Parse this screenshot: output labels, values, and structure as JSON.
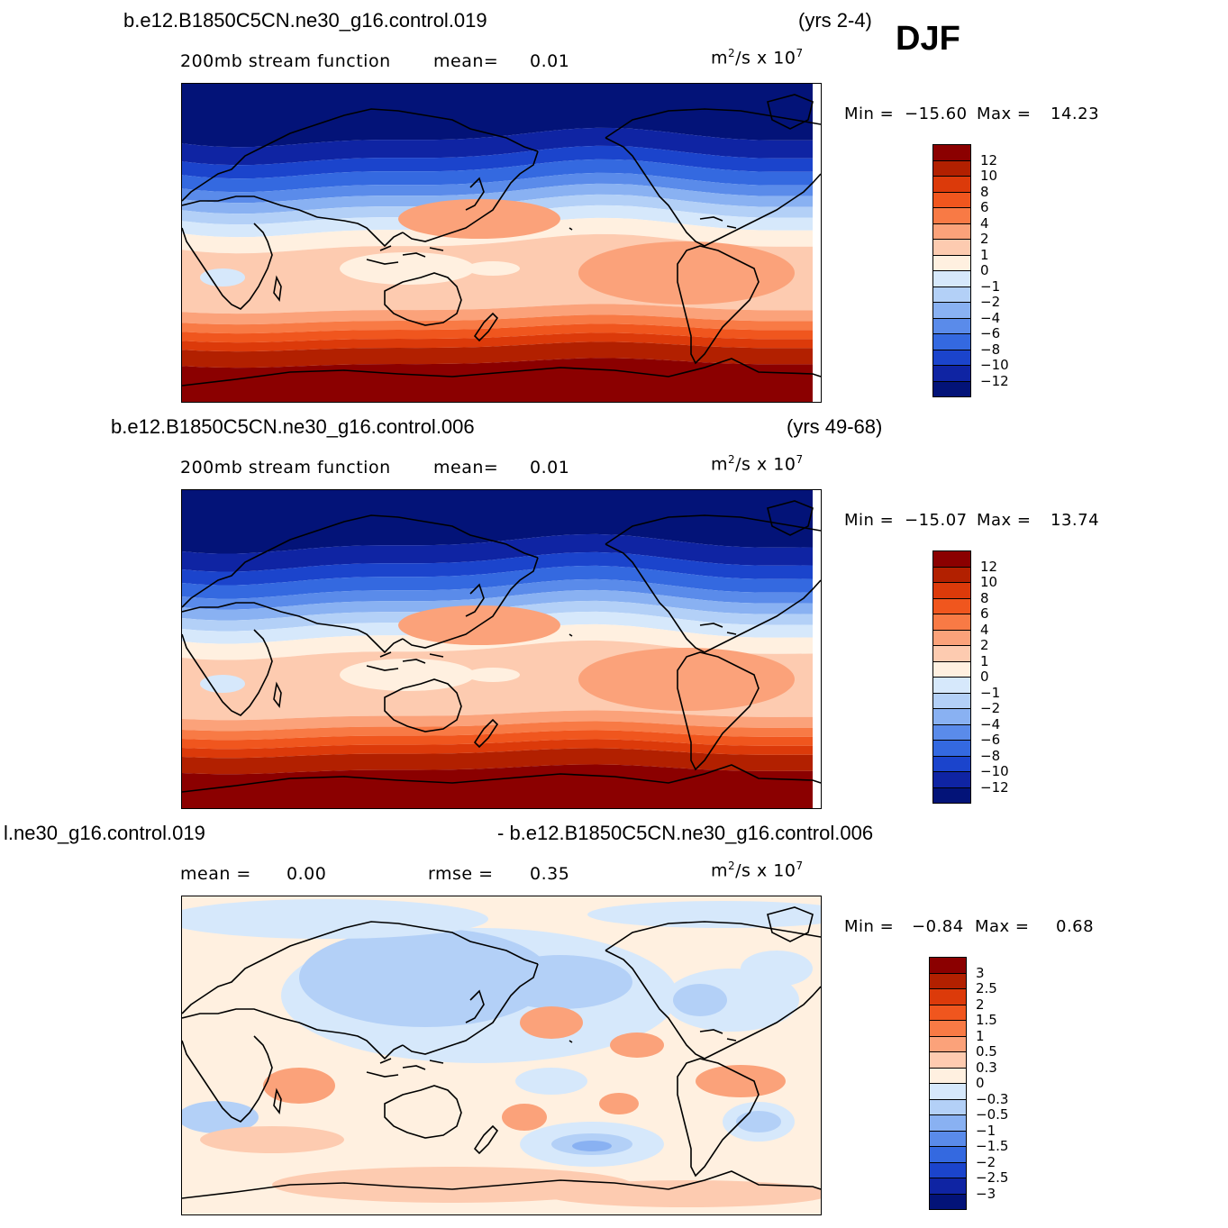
{
  "season": "DJF",
  "panels": [
    {
      "case_title": "b.e12.B1850C5CN.ne30_g16.control.019",
      "years": "(yrs 2-4)",
      "variable_label": "200mb stream function",
      "mean_label": "mean=",
      "mean_value": "0.01",
      "units_base": "m",
      "units_exp1": "2",
      "units_mid": "/s x 10",
      "units_exp2": "7",
      "min_label": "Min =",
      "min_value": "−15.60",
      "max_label": "Max =",
      "max_value": "14.23",
      "colorbar_labels": [
        "12",
        "10",
        "8",
        "6",
        "4",
        "2",
        "1",
        "0",
        "−1",
        "−2",
        "−4",
        "−6",
        "−8",
        "−10",
        "−12"
      ],
      "colorbar_colors": [
        "#8b0000",
        "#b22000",
        "#dc3a0a",
        "#f0561e",
        "#f87a45",
        "#fba27a",
        "#fdcbb0",
        "#fff0e0",
        "#d6e8fb",
        "#b3d0f7",
        "#89b1f2",
        "#5a8bea",
        "#3469e0",
        "#1b44cc",
        "#0f24a3",
        "#031378"
      ]
    },
    {
      "case_title": "b.e12.B1850C5CN.ne30_g16.control.006",
      "years": "(yrs 49-68)",
      "variable_label": "200mb stream function",
      "mean_label": "mean=",
      "mean_value": "0.01",
      "units_base": "m",
      "units_exp1": "2",
      "units_mid": "/s x 10",
      "units_exp2": "7",
      "min_label": "Min =",
      "min_value": "−15.07",
      "max_label": "Max =",
      "max_value": "13.74",
      "colorbar_labels": [
        "12",
        "10",
        "8",
        "6",
        "4",
        "2",
        "1",
        "0",
        "−1",
        "−2",
        "−4",
        "−6",
        "−8",
        "−10",
        "−12"
      ],
      "colorbar_colors": [
        "#8b0000",
        "#b22000",
        "#dc3a0a",
        "#f0561e",
        "#f87a45",
        "#fba27a",
        "#fdcbb0",
        "#fff0e0",
        "#d6e8fb",
        "#b3d0f7",
        "#89b1f2",
        "#5a8bea",
        "#3469e0",
        "#1b44cc",
        "#0f24a3",
        "#031378"
      ]
    },
    {
      "case_title_left": "l.ne30_g16.control.019",
      "case_title_right": "- b.e12.B1850C5CN.ne30_g16.control.006",
      "mean_label": "mean =",
      "mean_value": "0.00",
      "rmse_label": "rmse =",
      "rmse_value": "0.35",
      "units_base": "m",
      "units_exp1": "2",
      "units_mid": "/s x 10",
      "units_exp2": "7",
      "min_label": "Min =",
      "min_value": "−0.84",
      "max_label": "Max =",
      "max_value": "0.68",
      "colorbar_labels": [
        "3",
        "2.5",
        "2",
        "1.5",
        "1",
        "0.5",
        "0.3",
        "0",
        "−0.3",
        "−0.5",
        "−1",
        "−1.5",
        "−2",
        "−2.5",
        "−3"
      ],
      "colorbar_colors": [
        "#8b0000",
        "#b22000",
        "#dc3a0a",
        "#f0561e",
        "#f87a45",
        "#fba27a",
        "#fdcbb0",
        "#fff0e0",
        "#d6e8fb",
        "#b3d0f7",
        "#89b1f2",
        "#5a8bea",
        "#3469e0",
        "#1b44cc",
        "#0f24a3",
        "#031378"
      ]
    }
  ]
}
